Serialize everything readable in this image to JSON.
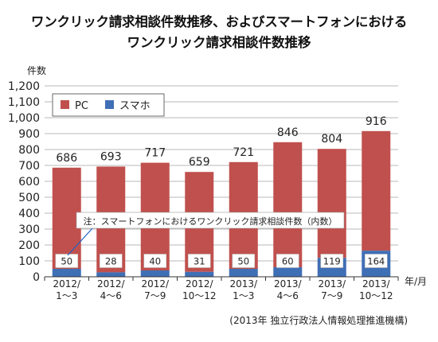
{
  "title_line1": "ワンクリック請求相談件数推移、およびスマートフォンにおける",
  "title_line2": "ワンクリック請求相談件数推移",
  "source": "(2013年 独立行政法人情報処理推進機構)",
  "chart_data": {
    "type": "bar",
    "stacked": true,
    "ylabel": "件数",
    "xlabel": "年/月",
    "ylim": [
      0,
      1200
    ],
    "yticks": [
      0,
      100,
      200,
      300,
      400,
      500,
      600,
      700,
      800,
      900,
      1000,
      1100,
      1200
    ],
    "ytick_labels": [
      "0",
      "100",
      "200",
      "300",
      "400",
      "500",
      "600",
      "700",
      "800",
      "900",
      "1,000",
      "1,100",
      "1,200"
    ],
    "grid": true,
    "legend_position": "top-left",
    "categories": [
      [
        "2012/",
        "1～3"
      ],
      [
        "2012/",
        "4～6"
      ],
      [
        "2012/",
        "7～9"
      ],
      [
        "2012/",
        "10～12"
      ],
      [
        "2013/",
        "1～3"
      ],
      [
        "2013/",
        "4～6"
      ],
      [
        "2013/",
        "7～9"
      ],
      [
        "2013/",
        "10～12"
      ]
    ],
    "totals": [
      686,
      693,
      717,
      659,
      721,
      846,
      804,
      916
    ],
    "total_labels": [
      "686",
      "693",
      "717",
      "659",
      "721",
      "846",
      "804",
      "916"
    ],
    "series": [
      {
        "name": "スマホ",
        "color": "#3f6fb5",
        "values": [
          50,
          28,
          40,
          31,
          50,
          60,
          119,
          164
        ]
      },
      {
        "name": "PC",
        "color": "#c0504d",
        "values": [
          636,
          665,
          677,
          628,
          671,
          786,
          685,
          752
        ]
      }
    ],
    "legend": [
      "PC",
      "スマホ"
    ],
    "annotation": "注：スマートフォンにおけるワンクリック請求相談件数（内数）"
  }
}
